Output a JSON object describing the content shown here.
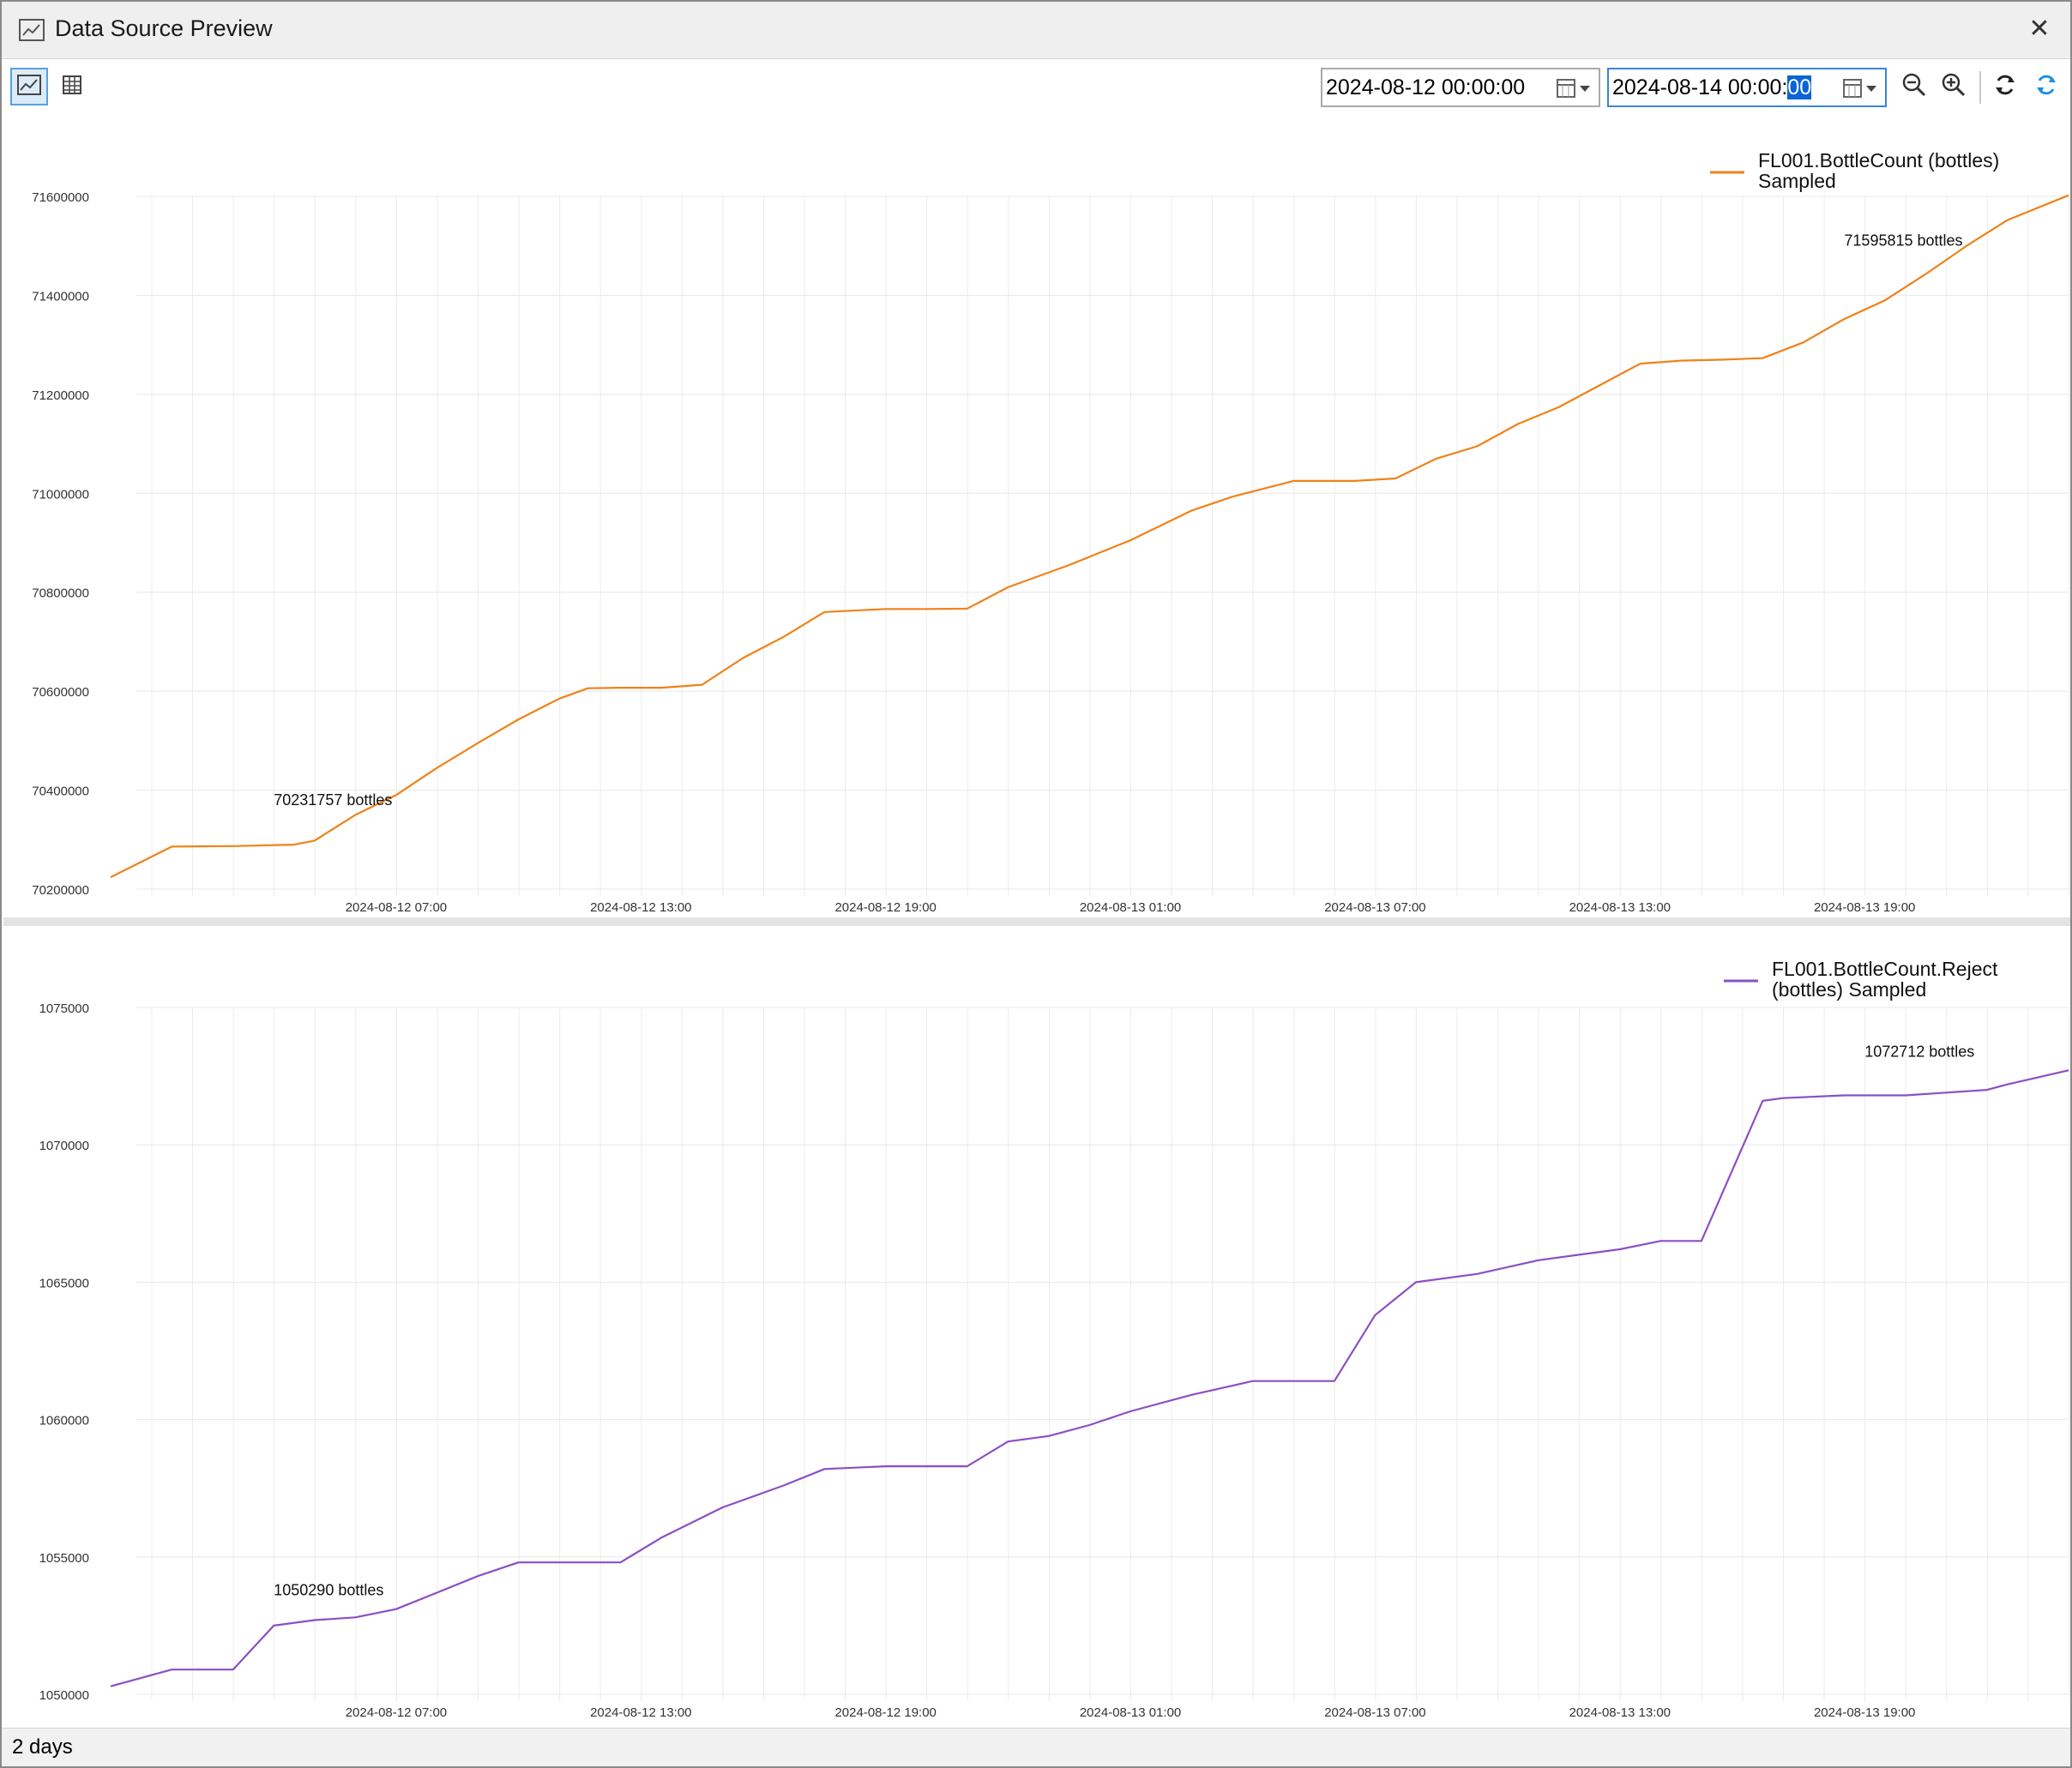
{
  "window": {
    "title": "Data Source Preview",
    "title_icon": "line-chart-icon",
    "close_icon": "close-icon"
  },
  "toolbar": {
    "chart_view_icon": "chart-view-icon",
    "table_view_icon": "table-view-icon",
    "start_date": "2024-08-12 00:00:00",
    "end_date_prefix": "2024-08-14 00:00:",
    "end_date_selected": "00",
    "zoom_out_icon": "zoom-out-icon",
    "zoom_in_icon": "zoom-in-icon",
    "reset_icon": "reset-icon",
    "refresh_icon": "refresh-icon"
  },
  "status": {
    "duration": "2 days"
  },
  "colors": {
    "series1": "#f08218",
    "series2": "#8c4fc3",
    "accent": "#3a85d8"
  },
  "chart_data": [
    {
      "type": "line",
      "title": "",
      "xlabel": "",
      "ylabel": "",
      "xlim": [
        0,
        48
      ],
      "ylim": [
        70200000,
        71600000
      ],
      "yticks": [
        "71600000",
        "71400000",
        "71200000",
        "71000000",
        "70800000",
        "70600000",
        "70400000",
        "70200000"
      ],
      "ytick_values": [
        71600000,
        71400000,
        71200000,
        71000000,
        70800000,
        70600000,
        70400000,
        70200000
      ],
      "xticks": [
        "2024-08-12 07:00",
        "2024-08-12 13:00",
        "2024-08-12 19:00",
        "2024-08-13 01:00",
        "2024-08-13 07:00",
        "2024-08-13 13:00",
        "2024-08-13 19:00"
      ],
      "xtick_hours": [
        7,
        13,
        19,
        25,
        31,
        37,
        43
      ],
      "legend": "top-right",
      "grid": true,
      "series": [
        {
          "name": "FL001.BottleCount (bottles) Sampled",
          "x_hours": [
            0,
            1.5,
            3,
            4.5,
            5,
            6,
            7,
            8,
            9,
            10,
            11,
            11.7,
            12.5,
            13.5,
            14.5,
            15.5,
            16.5,
            17.5,
            19,
            20,
            21,
            22,
            23.5,
            25,
            26.5,
            27.5,
            29,
            30.5,
            31.5,
            32.5,
            33.5,
            34.5,
            35.5,
            36.5,
            37.5,
            38.5,
            39.5,
            40.5,
            41.5,
            42.5,
            43.5,
            44.5,
            45.5,
            46.5,
            48
          ],
          "values": [
            70224000,
            70286000,
            70287000,
            70290000,
            70298000,
            70350000,
            70390000,
            70445000,
            70495000,
            70543000,
            70585000,
            70606000,
            70607000,
            70607000,
            70613000,
            70667000,
            70710000,
            70760000,
            70766000,
            70766000,
            70767000,
            70810000,
            70855000,
            70905000,
            70965000,
            70993000,
            71025000,
            71025000,
            71030000,
            71070000,
            71095000,
            71140000,
            71174000,
            71218000,
            71262000,
            71268000,
            71270000,
            71273000,
            71305000,
            71352000,
            71390000,
            71443000,
            71500000,
            71552000,
            71602000
          ]
        }
      ],
      "annotations": [
        {
          "text": "70231757 bottles",
          "x_hour": 4,
          "value": 70370000
        },
        {
          "text": "71595815 bottles",
          "x_hour": 42.5,
          "value": 71500000
        }
      ]
    },
    {
      "type": "line",
      "title": "",
      "xlabel": "",
      "ylabel": "",
      "xlim": [
        0,
        48
      ],
      "ylim": [
        1050000,
        1075000
      ],
      "yticks": [
        "1075000",
        "1070000",
        "1065000",
        "1060000",
        "1055000",
        "1050000"
      ],
      "ytick_values": [
        1075000,
        1070000,
        1065000,
        1060000,
        1055000,
        1050000
      ],
      "xticks": [
        "2024-08-12 07:00",
        "2024-08-12 13:00",
        "2024-08-12 19:00",
        "2024-08-13 01:00",
        "2024-08-13 07:00",
        "2024-08-13 13:00",
        "2024-08-13 19:00"
      ],
      "xtick_hours": [
        7,
        13,
        19,
        25,
        31,
        37,
        43
      ],
      "legend": "top-right",
      "grid": true,
      "series": [
        {
          "name": "FL001.BottleCount.Reject (bottles) Sampled",
          "x_hours": [
            0,
            1.5,
            3,
            4,
            5,
            6,
            7,
            8,
            9,
            10,
            10.5,
            12.5,
            13.5,
            15,
            16.5,
            17.5,
            19,
            21,
            22,
            23,
            24,
            25,
            26.5,
            28,
            30,
            31,
            32,
            33.5,
            35,
            36,
            37,
            38,
            39,
            40.5,
            41,
            42.5,
            44,
            45,
            46,
            46.5,
            48
          ],
          "values": [
            1050290,
            1050900,
            1050900,
            1052500,
            1052700,
            1052800,
            1053100,
            1053700,
            1054300,
            1054800,
            1054800,
            1054800,
            1055700,
            1056800,
            1057600,
            1058200,
            1058300,
            1058300,
            1059200,
            1059400,
            1059800,
            1060300,
            1060900,
            1061400,
            1061400,
            1063800,
            1065000,
            1065300,
            1065800,
            1066000,
            1066200,
            1066500,
            1066500,
            1071600,
            1071700,
            1071800,
            1071800,
            1071900,
            1072000,
            1072200,
            1072712
          ]
        }
      ],
      "annotations": [
        {
          "text": "1050290 bottles",
          "x_hour": 4,
          "value": 1053600
        },
        {
          "text": "1072712 bottles",
          "x_hour": 43,
          "value": 1073200
        }
      ]
    }
  ]
}
